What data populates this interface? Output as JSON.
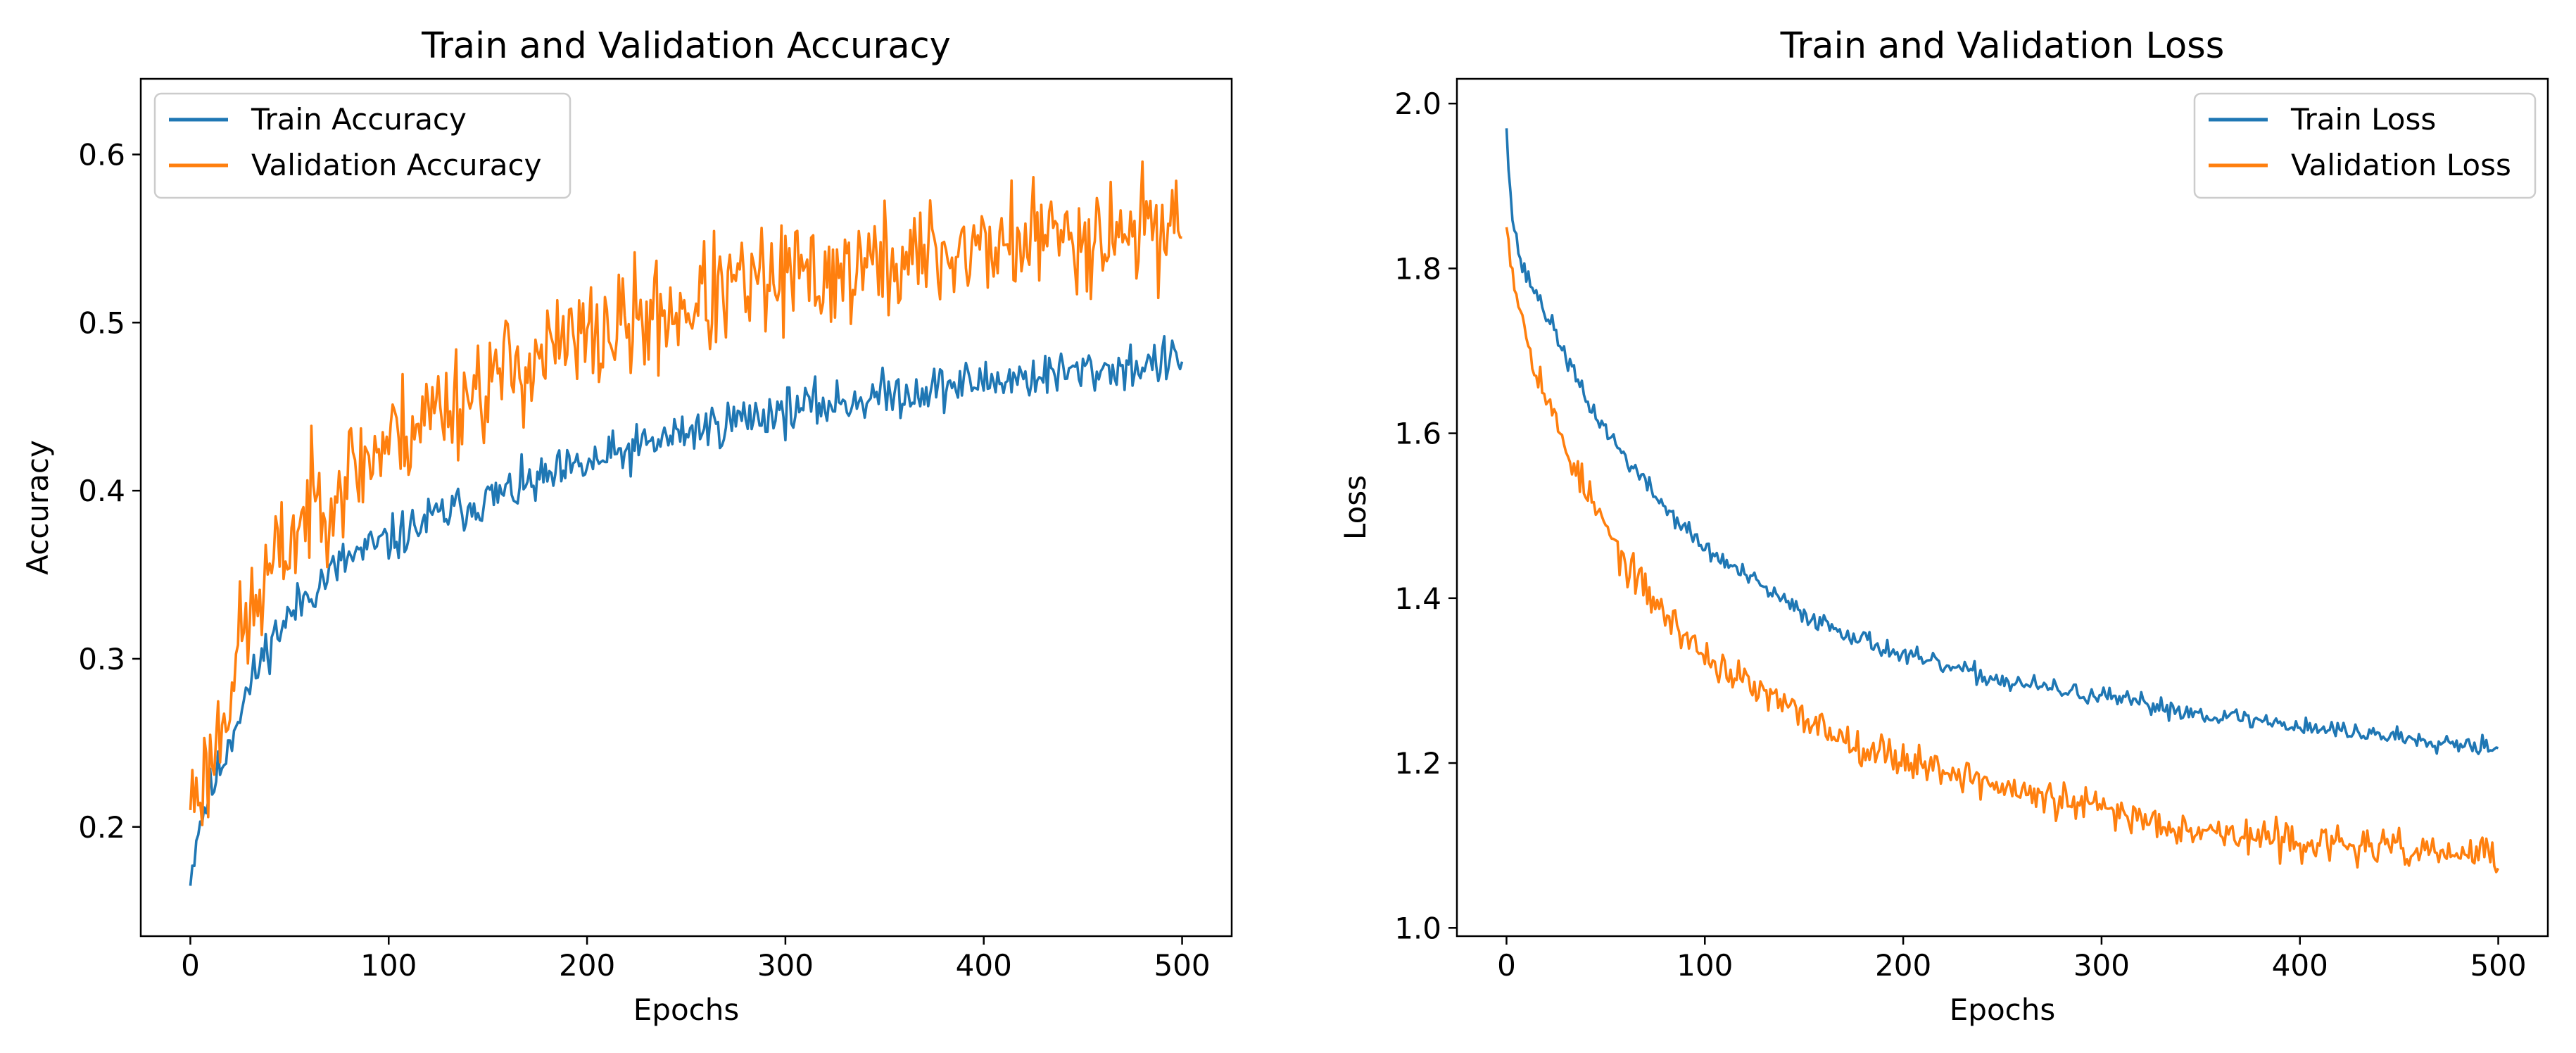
{
  "chart_data": [
    {
      "type": "line",
      "title": "Train and Validation Accuracy",
      "xlabel": "Epochs",
      "ylabel": "Accuracy",
      "xlim": [
        -25,
        525
      ],
      "ylim": [
        0.135,
        0.645
      ],
      "x_ticks": [
        0,
        100,
        200,
        300,
        400,
        500
      ],
      "y_ticks": [
        0.2,
        0.3,
        0.4,
        0.5,
        0.6
      ],
      "grid": false,
      "legend_position": "upper-left",
      "series": [
        {
          "name": "Train Accuracy",
          "color": "#1f77b4",
          "anchors": [
            [
              0,
              0.165
            ],
            [
              3,
              0.195
            ],
            [
              8,
              0.215
            ],
            [
              15,
              0.235
            ],
            [
              25,
              0.27
            ],
            [
              40,
              0.31
            ],
            [
              60,
              0.34
            ],
            [
              80,
              0.36
            ],
            [
              100,
              0.37
            ],
            [
              125,
              0.385
            ],
            [
              150,
              0.395
            ],
            [
              175,
              0.405
            ],
            [
              200,
              0.415
            ],
            [
              225,
              0.425
            ],
            [
              250,
              0.435
            ],
            [
              275,
              0.442
            ],
            [
              300,
              0.448
            ],
            [
              325,
              0.452
            ],
            [
              350,
              0.457
            ],
            [
              375,
              0.461
            ],
            [
              400,
              0.465
            ],
            [
              425,
              0.468
            ],
            [
              450,
              0.471
            ],
            [
              475,
              0.474
            ],
            [
              500,
              0.478
            ]
          ],
          "noise": 0.013,
          "seed": 11
        },
        {
          "name": "Validation Accuracy",
          "color": "#ff7f0e",
          "anchors": [
            [
              0,
              0.21
            ],
            [
              3,
              0.225
            ],
            [
              8,
              0.23
            ],
            [
              15,
              0.26
            ],
            [
              25,
              0.31
            ],
            [
              40,
              0.35
            ],
            [
              60,
              0.39
            ],
            [
              80,
              0.41
            ],
            [
              100,
              0.43
            ],
            [
              125,
              0.45
            ],
            [
              150,
              0.465
            ],
            [
              175,
              0.48
            ],
            [
              200,
              0.49
            ],
            [
              225,
              0.5
            ],
            [
              250,
              0.51
            ],
            [
              275,
              0.52
            ],
            [
              300,
              0.525
            ],
            [
              325,
              0.53
            ],
            [
              350,
              0.535
            ],
            [
              375,
              0.54
            ],
            [
              400,
              0.545
            ],
            [
              425,
              0.55
            ],
            [
              450,
              0.553
            ],
            [
              475,
              0.556
            ],
            [
              500,
              0.56
            ]
          ],
          "noise": 0.032,
          "seed": 23
        }
      ]
    },
    {
      "type": "line",
      "title": "Train and Validation Loss",
      "xlabel": "Epochs",
      "ylabel": "Loss",
      "xlim": [
        -25,
        525
      ],
      "ylim": [
        0.99,
        2.03
      ],
      "x_ticks": [
        0,
        100,
        200,
        300,
        400,
        500
      ],
      "y_ticks": [
        1.0,
        1.2,
        1.4,
        1.6,
        1.8,
        2.0
      ],
      "grid": false,
      "legend_position": "upper-right",
      "series": [
        {
          "name": "Train Loss",
          "color": "#1f77b4",
          "anchors": [
            [
              0,
              1.97
            ],
            [
              3,
              1.86
            ],
            [
              8,
              1.8
            ],
            [
              15,
              1.77
            ],
            [
              25,
              1.72
            ],
            [
              40,
              1.64
            ],
            [
              60,
              1.57
            ],
            [
              80,
              1.51
            ],
            [
              100,
              1.46
            ],
            [
              125,
              1.42
            ],
            [
              150,
              1.38
            ],
            [
              175,
              1.355
            ],
            [
              200,
              1.33
            ],
            [
              225,
              1.315
            ],
            [
              250,
              1.3
            ],
            [
              275,
              1.29
            ],
            [
              300,
              1.28
            ],
            [
              325,
              1.27
            ],
            [
              350,
              1.26
            ],
            [
              375,
              1.253
            ],
            [
              400,
              1.245
            ],
            [
              425,
              1.238
            ],
            [
              450,
              1.232
            ],
            [
              475,
              1.226
            ],
            [
              500,
              1.22
            ]
          ],
          "noise": 0.011,
          "seed": 37
        },
        {
          "name": "Validation Loss",
          "color": "#ff7f0e",
          "anchors": [
            [
              0,
              1.85
            ],
            [
              3,
              1.8
            ],
            [
              8,
              1.74
            ],
            [
              15,
              1.68
            ],
            [
              25,
              1.61
            ],
            [
              40,
              1.53
            ],
            [
              60,
              1.44
            ],
            [
              80,
              1.38
            ],
            [
              100,
              1.33
            ],
            [
              125,
              1.29
            ],
            [
              150,
              1.255
            ],
            [
              175,
              1.225
            ],
            [
              200,
              1.205
            ],
            [
              225,
              1.19
            ],
            [
              250,
              1.17
            ],
            [
              275,
              1.155
            ],
            [
              300,
              1.145
            ],
            [
              325,
              1.13
            ],
            [
              350,
              1.12
            ],
            [
              375,
              1.11
            ],
            [
              400,
              1.105
            ],
            [
              425,
              1.1
            ],
            [
              450,
              1.095
            ],
            [
              475,
              1.09
            ],
            [
              500,
              1.088
            ]
          ],
          "noise": 0.02,
          "seed": 53
        }
      ]
    }
  ]
}
